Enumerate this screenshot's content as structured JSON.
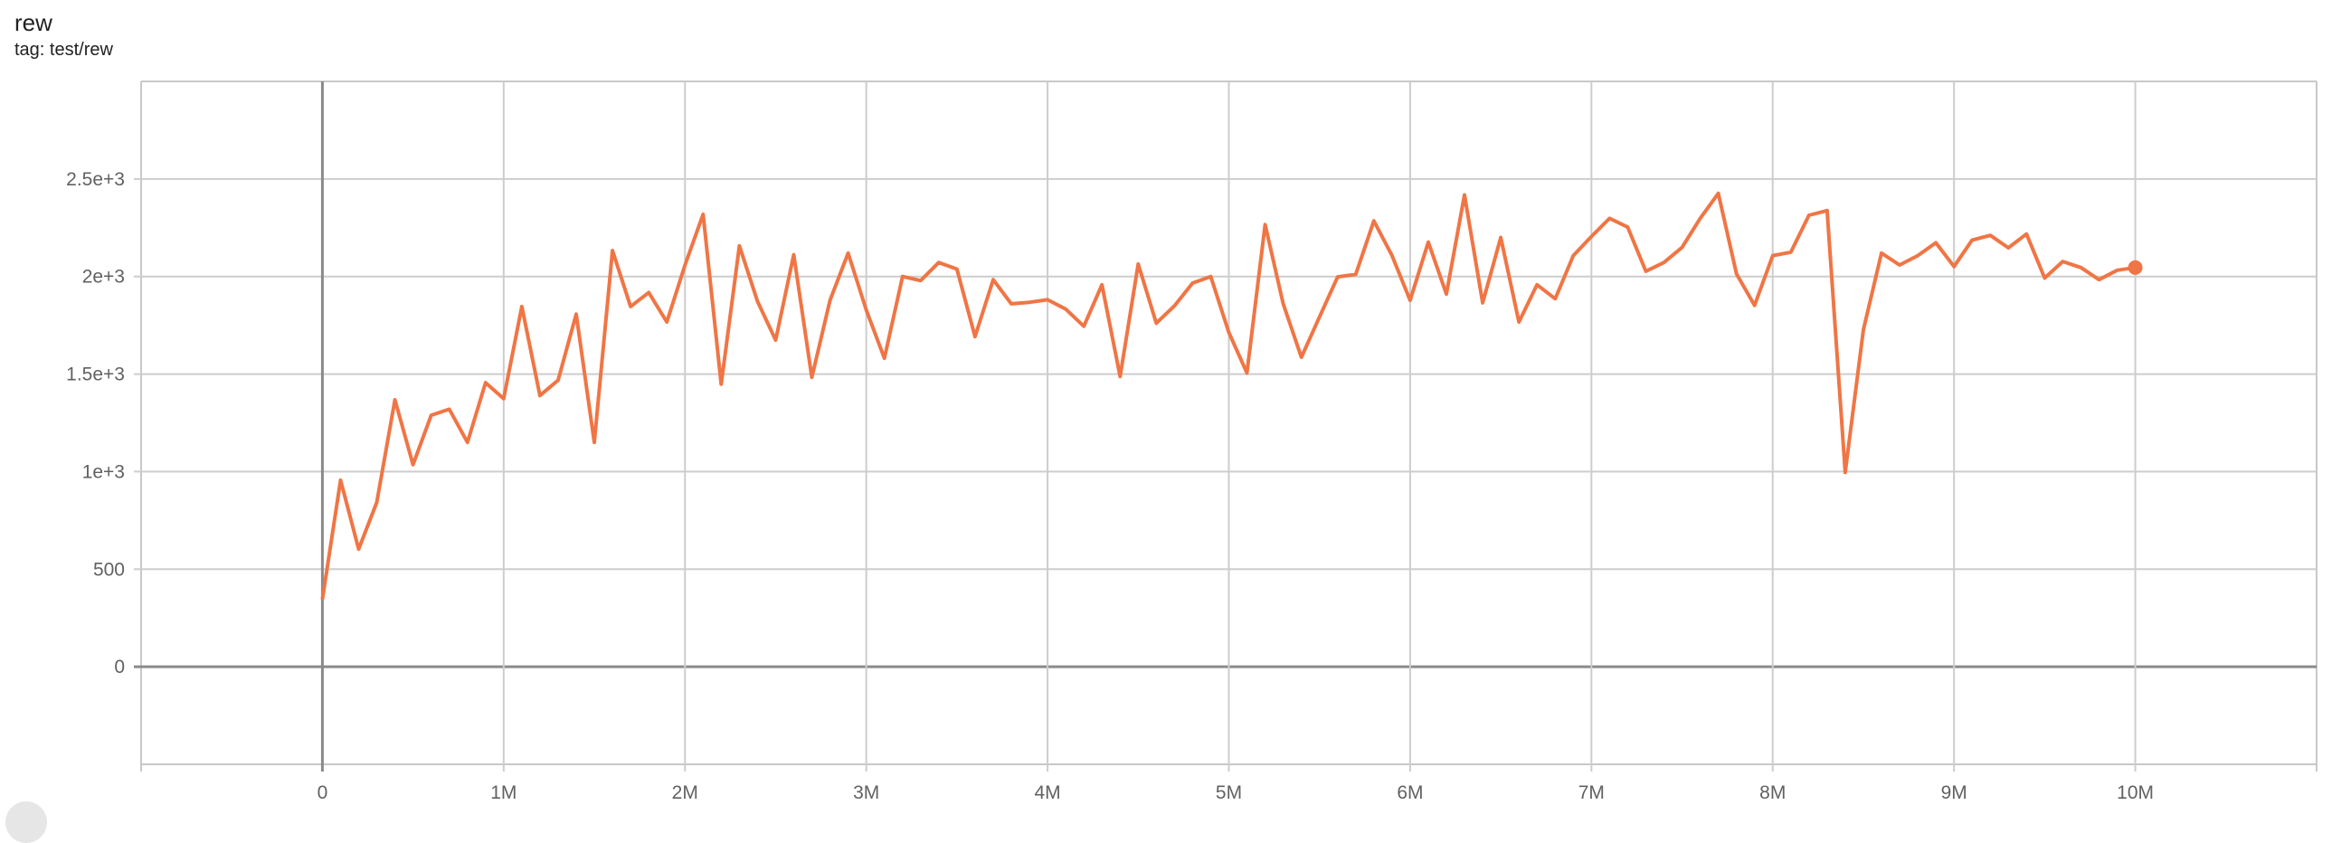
{
  "card": {
    "title": "rew",
    "subtitle": "tag: test/rew"
  },
  "chart_data": {
    "type": "line",
    "title": "rew",
    "subtitle": "tag: test/rew",
    "xlabel": "",
    "ylabel": "",
    "xlim": [
      -1000000,
      11000000
    ],
    "ylim": [
      -500,
      3000
    ],
    "grid": true,
    "x_ticks": [
      0,
      1000000,
      2000000,
      3000000,
      4000000,
      5000000,
      6000000,
      7000000,
      8000000,
      9000000,
      10000000
    ],
    "x_tick_labels": [
      "0",
      "1M",
      "2M",
      "3M",
      "4M",
      "5M",
      "6M",
      "7M",
      "8M",
      "9M",
      "10M"
    ],
    "y_ticks": [
      0,
      500,
      1000,
      1500,
      2000,
      2500
    ],
    "y_tick_labels": [
      "0",
      "500",
      "1e+3",
      "1.5e+3",
      "2e+3",
      "2.5e+3"
    ],
    "color": "#f07545",
    "x_step": 100000,
    "series": [
      {
        "values": [
          345,
          956,
          603,
          842,
          1368,
          1036,
          1289,
          1320,
          1150,
          1456,
          1374,
          1846,
          1390,
          1469,
          1807,
          1150,
          2133,
          1846,
          1918,
          1767,
          2059,
          2319,
          1448,
          2157,
          1873,
          1674,
          2112,
          1483,
          1878,
          2120,
          1828,
          1581,
          2000,
          1979,
          2072,
          2038,
          1692,
          1984,
          1860,
          1868,
          1881,
          1833,
          1745,
          1958,
          1488,
          2064,
          1761,
          1850,
          1966,
          2000,
          1713,
          1506,
          2266,
          1860,
          1586,
          1793,
          1998,
          2011,
          2285,
          2107,
          1878,
          2176,
          1910,
          2418,
          1865,
          2200,
          1767,
          1958,
          1886,
          2107,
          2205,
          2298,
          2253,
          2027,
          2072,
          2149,
          2298,
          2426,
          2014,
          1852,
          2107,
          2125,
          2314,
          2338,
          996,
          1727,
          2120,
          2059,
          2107,
          2173,
          2051,
          2187,
          2211,
          2147,
          2218,
          1992,
          2077,
          2046,
          1984,
          2032,
          2046
        ]
      }
    ]
  }
}
